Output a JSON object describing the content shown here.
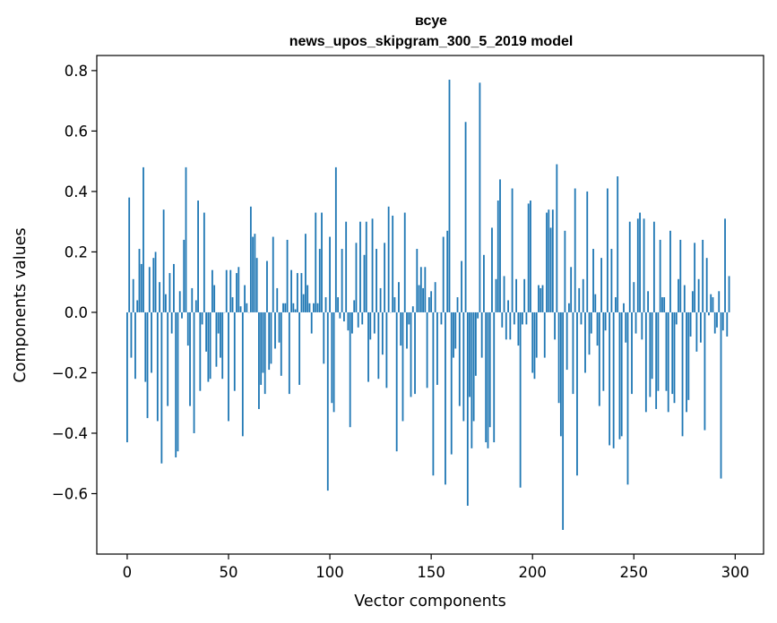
{
  "chart_data": {
    "type": "bar",
    "title_line1": "всуе",
    "title_line2": "news_upos_skipgram_300_5_2019 model",
    "xlabel": "Vector components",
    "ylabel": "Components values",
    "xlim": [
      -15,
      314
    ],
    "ylim": [
      -0.8,
      0.85
    ],
    "xticks": [
      0,
      50,
      100,
      150,
      200,
      250,
      300
    ],
    "yticks": [
      -0.6,
      -0.4,
      -0.2,
      0.0,
      0.2,
      0.4,
      0.6,
      0.8
    ],
    "xtick_labels": [
      "0",
      "50",
      "100",
      "150",
      "200",
      "250",
      "300"
    ],
    "ytick_labels": [
      "−0.6",
      "−0.4",
      "−0.2",
      "0.0",
      "0.2",
      "0.4",
      "0.6",
      "0.8"
    ],
    "grid": false,
    "bar_color": "#1f77b4",
    "values": [
      -0.43,
      0.38,
      -0.15,
      0.11,
      -0.22,
      0.04,
      0.21,
      0.16,
      0.48,
      -0.23,
      -0.35,
      0.15,
      -0.2,
      0.18,
      0.2,
      -0.36,
      0.1,
      -0.5,
      0.34,
      0.06,
      -0.31,
      0.13,
      -0.07,
      0.16,
      -0.48,
      -0.46,
      0.07,
      -0.02,
      0.24,
      0.48,
      -0.11,
      -0.31,
      0.08,
      -0.4,
      0.04,
      0.37,
      -0.26,
      -0.04,
      0.33,
      -0.13,
      -0.23,
      -0.22,
      0.14,
      0.09,
      -0.18,
      -0.07,
      -0.15,
      -0.22,
      0.0,
      0.14,
      -0.36,
      0.14,
      0.05,
      -0.26,
      0.13,
      0.15,
      0.02,
      -0.41,
      0.09,
      0.03,
      0.0,
      0.35,
      0.25,
      0.26,
      0.18,
      -0.32,
      -0.24,
      -0.2,
      -0.27,
      0.17,
      -0.19,
      -0.17,
      0.25,
      -0.12,
      0.08,
      -0.1,
      -0.21,
      0.03,
      0.03,
      0.24,
      -0.27,
      0.14,
      0.03,
      0.01,
      0.13,
      -0.24,
      0.13,
      0.06,
      0.26,
      0.09,
      0.03,
      -0.07,
      0.03,
      0.33,
      0.03,
      0.21,
      0.33,
      -0.17,
      0.05,
      -0.59,
      0.25,
      -0.3,
      -0.33,
      0.48,
      0.05,
      -0.02,
      0.21,
      -0.03,
      0.3,
      -0.06,
      -0.38,
      -0.07,
      0.04,
      0.23,
      -0.05,
      0.3,
      -0.04,
      0.19,
      0.3,
      -0.23,
      -0.09,
      0.31,
      -0.07,
      0.21,
      -0.22,
      0.08,
      -0.14,
      0.23,
      -0.25,
      0.35,
      0.0,
      0.32,
      0.05,
      -0.46,
      0.1,
      -0.11,
      -0.36,
      0.33,
      -0.12,
      -0.04,
      -0.28,
      0.02,
      -0.27,
      0.21,
      0.09,
      0.15,
      0.08,
      0.15,
      -0.25,
      0.05,
      0.07,
      -0.54,
      0.1,
      -0.24,
      0.0,
      -0.04,
      0.25,
      -0.57,
      0.27,
      0.77,
      -0.47,
      -0.15,
      -0.12,
      0.05,
      -0.31,
      0.17,
      -0.36,
      0.63,
      -0.64,
      -0.28,
      -0.45,
      -0.36,
      -0.21,
      -0.02,
      0.76,
      -0.15,
      0.19,
      -0.43,
      -0.45,
      -0.38,
      0.28,
      -0.43,
      0.11,
      0.37,
      0.44,
      -0.05,
      0.12,
      -0.09,
      0.04,
      -0.09,
      0.41,
      -0.04,
      0.11,
      -0.11,
      -0.58,
      -0.04,
      0.11,
      -0.04,
      0.36,
      0.37,
      -0.2,
      -0.22,
      -0.15,
      0.09,
      0.08,
      0.09,
      -0.15,
      0.33,
      0.34,
      0.28,
      0.34,
      -0.09,
      0.49,
      -0.3,
      -0.41,
      -0.72,
      0.27,
      -0.19,
      0.03,
      0.15,
      -0.27,
      0.41,
      -0.54,
      0.08,
      -0.04,
      0.11,
      -0.2,
      0.4,
      -0.14,
      -0.07,
      0.21,
      0.06,
      -0.11,
      -0.31,
      0.18,
      -0.26,
      -0.06,
      0.41,
      -0.44,
      0.21,
      -0.45,
      0.05,
      0.45,
      -0.42,
      -0.41,
      0.03,
      -0.1,
      -0.57,
      0.3,
      -0.27,
      0.1,
      -0.07,
      0.31,
      0.33,
      -0.09,
      0.31,
      -0.33,
      0.07,
      -0.28,
      -0.22,
      0.3,
      -0.32,
      -0.26,
      0.24,
      0.05,
      0.05,
      -0.26,
      -0.33,
      0.27,
      -0.27,
      -0.3,
      -0.04,
      0.11,
      0.24,
      -0.41,
      0.09,
      -0.33,
      -0.29,
      -0.08,
      0.07,
      0.23,
      -0.13,
      0.11,
      -0.1,
      0.24,
      -0.39,
      0.18,
      -0.01,
      0.06,
      0.05,
      -0.07,
      -0.05,
      0.07,
      -0.55,
      -0.06,
      0.31,
      -0.08,
      0.12
    ]
  }
}
